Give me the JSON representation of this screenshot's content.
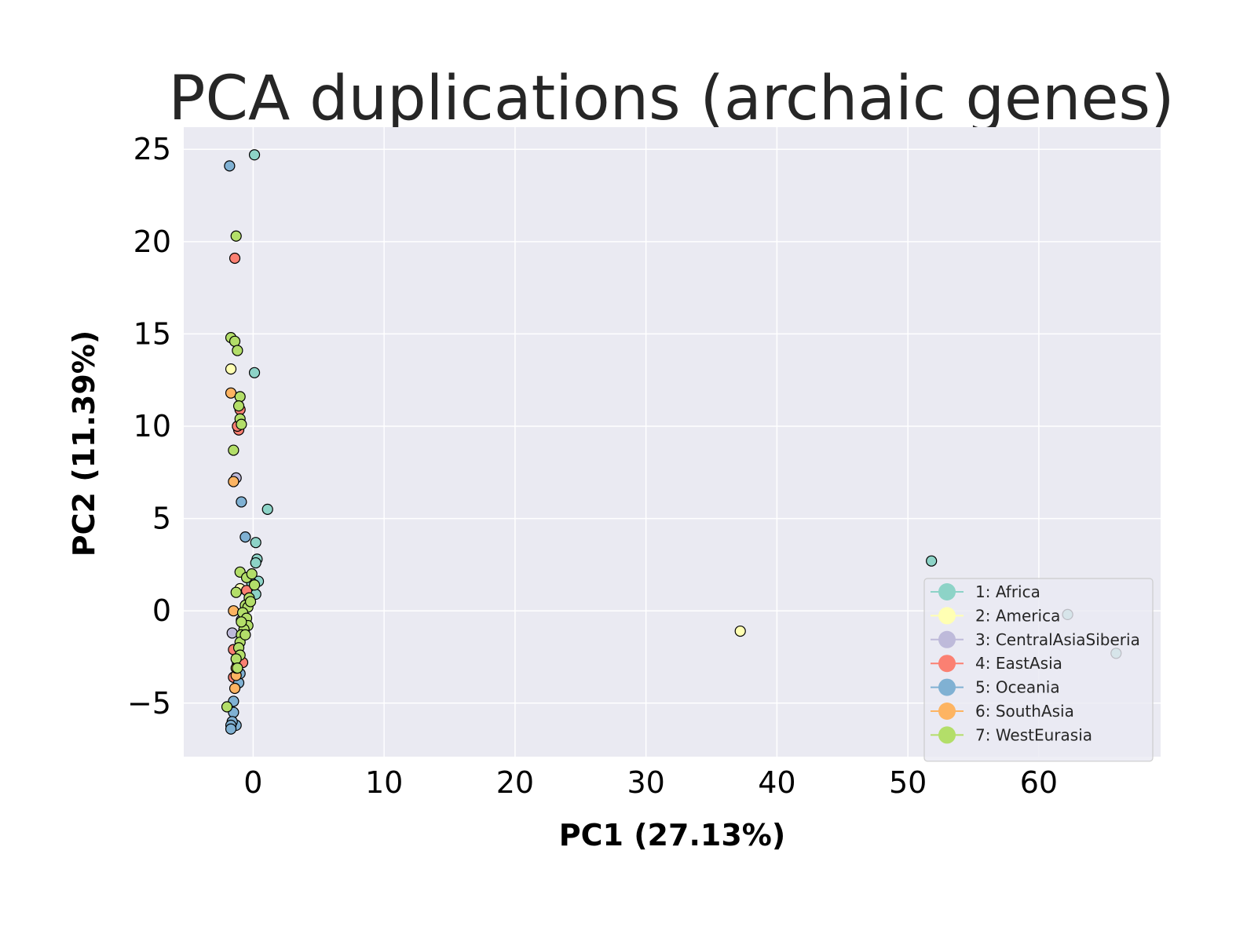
{
  "chart_data": {
    "type": "scatter",
    "title": "PCA duplications (archaic genes)",
    "xlabel": "PC1 (27.13%)",
    "ylabel": "PC2 (11.39%)",
    "xlim": [
      -5.3,
      69.3
    ],
    "ylim": [
      -7.9,
      26.2
    ],
    "x_ticks": [
      0,
      10,
      20,
      30,
      40,
      50,
      60
    ],
    "y_ticks": [
      -5,
      0,
      5,
      10,
      15,
      20,
      25
    ],
    "x_tick_labels": [
      "0",
      "10",
      "20",
      "30",
      "40",
      "50",
      "60"
    ],
    "y_tick_labels": [
      "−5",
      "0",
      "5",
      "10",
      "15",
      "20",
      "25"
    ],
    "grid": true,
    "legend_position": "lower-right",
    "series": [
      {
        "name": "1: Africa",
        "color": "#8dd3c7",
        "points": [
          [
            0.1,
            24.7
          ],
          [
            0.1,
            12.9
          ],
          [
            1.1,
            5.5
          ],
          [
            0.2,
            3.7
          ],
          [
            0.3,
            2.8
          ],
          [
            0.2,
            2.6
          ],
          [
            0.4,
            1.6
          ],
          [
            0.2,
            0.9
          ],
          [
            -0.1,
            1.5
          ],
          [
            51.8,
            2.7
          ],
          [
            62.2,
            -0.2
          ],
          [
            65.9,
            -2.3
          ]
        ]
      },
      {
        "name": "2: America",
        "color": "#ffffb3",
        "points": [
          [
            -1.7,
            13.1
          ],
          [
            -1.0,
            1.2
          ],
          [
            37.2,
            -1.1
          ]
        ]
      },
      {
        "name": "3: CentralAsiaSiberia",
        "color": "#bebada",
        "points": [
          [
            -1.6,
            -1.2
          ],
          [
            -1.3,
            7.2
          ],
          [
            -0.9,
            -0.5
          ],
          [
            -1.2,
            -2.2
          ]
        ]
      },
      {
        "name": "4: EastAsia",
        "color": "#fb8072",
        "points": [
          [
            -1.4,
            19.1
          ],
          [
            -1.0,
            10.9
          ],
          [
            -1.1,
            9.8
          ],
          [
            -1.2,
            10.0
          ],
          [
            -0.5,
            1.1
          ],
          [
            -1.5,
            -2.1
          ],
          [
            -1.2,
            -2.9
          ],
          [
            -1.5,
            -3.6
          ],
          [
            -0.8,
            -2.8
          ]
        ]
      },
      {
        "name": "5: Oceania",
        "color": "#80b1d3",
        "points": [
          [
            -1.8,
            24.1
          ],
          [
            -0.9,
            5.9
          ],
          [
            -0.6,
            4.0
          ],
          [
            -1.5,
            -4.9
          ],
          [
            -1.5,
            -5.5
          ],
          [
            -1.3,
            -6.2
          ],
          [
            -1.6,
            -6.0
          ],
          [
            -1.7,
            -6.2
          ],
          [
            -1.7,
            -6.4
          ],
          [
            -1.1,
            -3.9
          ],
          [
            -1.0,
            -3.4
          ]
        ]
      },
      {
        "name": "6: SouthAsia",
        "color": "#fdb462",
        "points": [
          [
            -1.7,
            11.8
          ],
          [
            -1.5,
            7.0
          ],
          [
            -1.5,
            0.0
          ],
          [
            -1.3,
            -3.5
          ],
          [
            -1.4,
            -4.2
          ],
          [
            -1.3,
            -3.1
          ]
        ]
      },
      {
        "name": "7: WestEurasia",
        "color": "#b3de69",
        "points": [
          [
            -1.3,
            20.3
          ],
          [
            -1.7,
            14.8
          ],
          [
            -1.4,
            14.6
          ],
          [
            -1.2,
            14.1
          ],
          [
            -1.0,
            11.6
          ],
          [
            -1.1,
            11.1
          ],
          [
            -1.0,
            10.4
          ],
          [
            -0.9,
            10.1
          ],
          [
            -1.5,
            8.7
          ],
          [
            -1.0,
            2.1
          ],
          [
            -1.3,
            1.0
          ],
          [
            -0.5,
            1.8
          ],
          [
            -0.1,
            2.0
          ],
          [
            0.1,
            1.4
          ],
          [
            -0.3,
            0.7
          ],
          [
            -0.6,
            0.3
          ],
          [
            -0.4,
            0.2
          ],
          [
            -0.8,
            -0.1
          ],
          [
            -0.5,
            -0.4
          ],
          [
            -0.4,
            -0.8
          ],
          [
            -0.7,
            -1.0
          ],
          [
            -0.9,
            -1.3
          ],
          [
            -1.0,
            -1.7
          ],
          [
            -1.1,
            -2.0
          ],
          [
            -1.0,
            -2.4
          ],
          [
            -1.3,
            -2.6
          ],
          [
            -1.2,
            -3.1
          ],
          [
            -2.0,
            -5.2
          ],
          [
            -0.6,
            -1.3
          ],
          [
            -0.9,
            -0.6
          ],
          [
            -0.2,
            0.5
          ]
        ]
      }
    ]
  }
}
